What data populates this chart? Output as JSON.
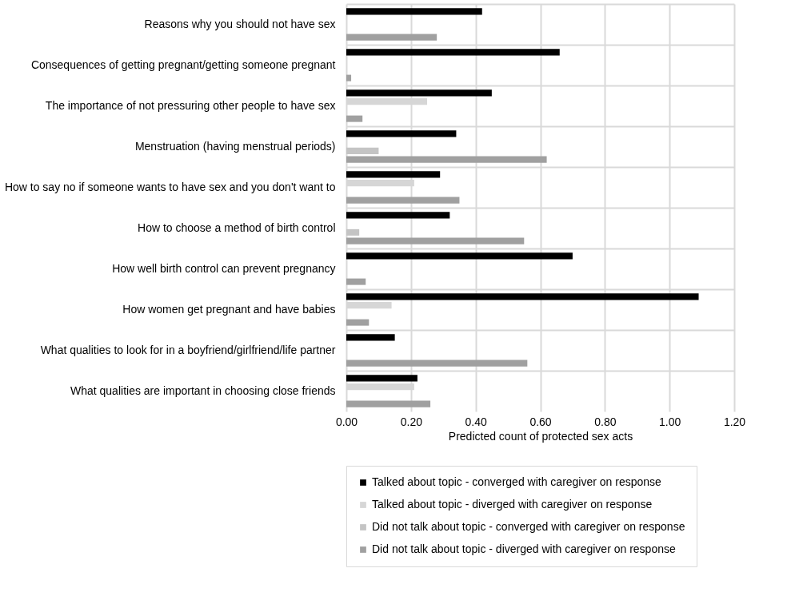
{
  "chart_data": {
    "type": "bar",
    "orientation": "horizontal",
    "categories": [
      "Reasons why you should not have sex",
      "Consequences of getting pregnant/getting someone pregnant",
      "The importance of not pressuring other people to have sex",
      "Menstruation (having menstrual periods)",
      "How to say no if someone wants to have sex and you don't want to",
      "How to choose a method of birth control",
      "How well birth control can prevent pregnancy",
      "How women get pregnant and have babies",
      "What qualities to look for in a boyfriend/girlfriend/life partner",
      "What qualities are important in choosing close friends"
    ],
    "series": [
      {
        "name": "Talked about topic - converged with caregiver on response",
        "color": "#000000",
        "values": [
          0.42,
          0.66,
          0.45,
          0.34,
          0.29,
          0.32,
          0.7,
          1.09,
          0.15,
          0.22
        ]
      },
      {
        "name": "Talked about topic - diverged with caregiver on response",
        "color": "#d6d6d6",
        "values": [
          null,
          null,
          0.25,
          null,
          0.21,
          null,
          null,
          0.14,
          null,
          0.21
        ]
      },
      {
        "name": "Did not talk about topic - converged with caregiver on response",
        "color": "#c4c4c4",
        "values": [
          null,
          null,
          null,
          0.1,
          null,
          0.04,
          null,
          null,
          null,
          null
        ]
      },
      {
        "name": "Did not talk about topic - diverged with caregiver on response",
        "color": "#a0a0a0",
        "values": [
          0.28,
          0.015,
          0.05,
          0.62,
          0.35,
          0.55,
          0.06,
          0.07,
          0.56,
          0.26
        ]
      }
    ],
    "xlabel": "Predicted count of protected sex acts",
    "xlim": [
      0,
      1.2
    ],
    "xticks": [
      {
        "value": 0,
        "label": "0.00"
      },
      {
        "value": 0.2,
        "label": "0.20"
      },
      {
        "value": 0.4,
        "label": "0.40"
      },
      {
        "value": 0.6,
        "label": "0.60"
      },
      {
        "value": 0.8,
        "label": "0.80"
      },
      {
        "value": 1.0,
        "label": "1.00"
      },
      {
        "value": 1.2,
        "label": "1.20"
      }
    ],
    "grid": true,
    "legend": "bottom"
  }
}
